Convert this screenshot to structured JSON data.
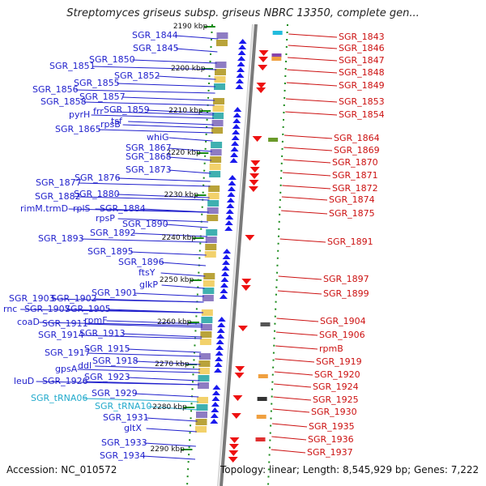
{
  "title": "Streptomyces griseus subsp. griseus NBRC 13350, complete gen...",
  "footer": {
    "accession": "Accession: NC_010572",
    "summary": "Topology: linear; Length: 8,545,929 bp; Genes: 7,222"
  },
  "kbp_ticks": [
    "2190 kbp",
    "2200 kbp",
    "2210 kbp",
    "2220 kbp",
    "2230 kbp",
    "2240 kbp",
    "2250 kbp",
    "2260 kbp",
    "2270 kbp",
    "2280 kbp",
    "2290 kbp"
  ],
  "left_genes": [
    "SGR_1844",
    "SGR_1845",
    "SGR_1850",
    "SGR_1851",
    "SGR_1852",
    "SGR_1855",
    "SGR_1856",
    "SGR_1857",
    "SGR_1858",
    "frr",
    "SGR_1859",
    "pyrH",
    "tsf",
    "rpsB",
    "SGR_1865",
    "whiG",
    "SGR_1867",
    "SGR_1868",
    "SGR_1873",
    "SGR_1876",
    "SGR_1877",
    "SGR_1880",
    "SGR_1882",
    "rimM.trmD",
    "rplS",
    "SGR_1884",
    "rpsP",
    "SGR_1890",
    "SGR_1892",
    "SGR_1893",
    "SGR_1895",
    "SGR_1896",
    "ftsY",
    "glkP",
    "SGR_1901",
    "SGR_1903",
    "SGR_1902",
    "rnc",
    "SGR_1907",
    "SGR_1905",
    "rpmF",
    "coaD",
    "SGR_1911",
    "SGR_1914",
    "SGR_1913",
    "SGR_1915",
    "SGR_1917",
    "SGR_1918",
    "gpsA",
    "ddl",
    "SGR_1923",
    "leuD",
    "SGR_1926",
    "SGR_1929",
    "SGR_tRNA06",
    "SGR_tRNA10",
    "SGR_1931",
    "gltX",
    "SGR_1933",
    "SGR_1934"
  ],
  "right_genes": [
    "SGR_1843",
    "SGR_1846",
    "SGR_1847",
    "SGR_1848",
    "SGR_1849",
    "SGR_1853",
    "SGR_1854",
    "SGR_1864",
    "SGR_1869",
    "SGR_1870",
    "SGR_1871",
    "SGR_1872",
    "SGR_1874",
    "SGR_1875",
    "SGR_1891",
    "SGR_1897",
    "SGR_1899",
    "SGR_1904",
    "SGR_1906",
    "rpmB",
    "SGR_1919",
    "SGR_1920",
    "SGR_1924",
    "SGR_1925",
    "SGR_1930",
    "SGR_1935",
    "SGR_1936",
    "SGR_1937"
  ],
  "colors": {
    "forward_gene": "#1a1aee",
    "reverse_gene": "#ee1111",
    "left_label": "#1f1fcc",
    "right_label": "#cc1111",
    "trna_label": "#22aacc",
    "axis": "#7a7a7a",
    "track_dots": "#1a8a1a"
  }
}
